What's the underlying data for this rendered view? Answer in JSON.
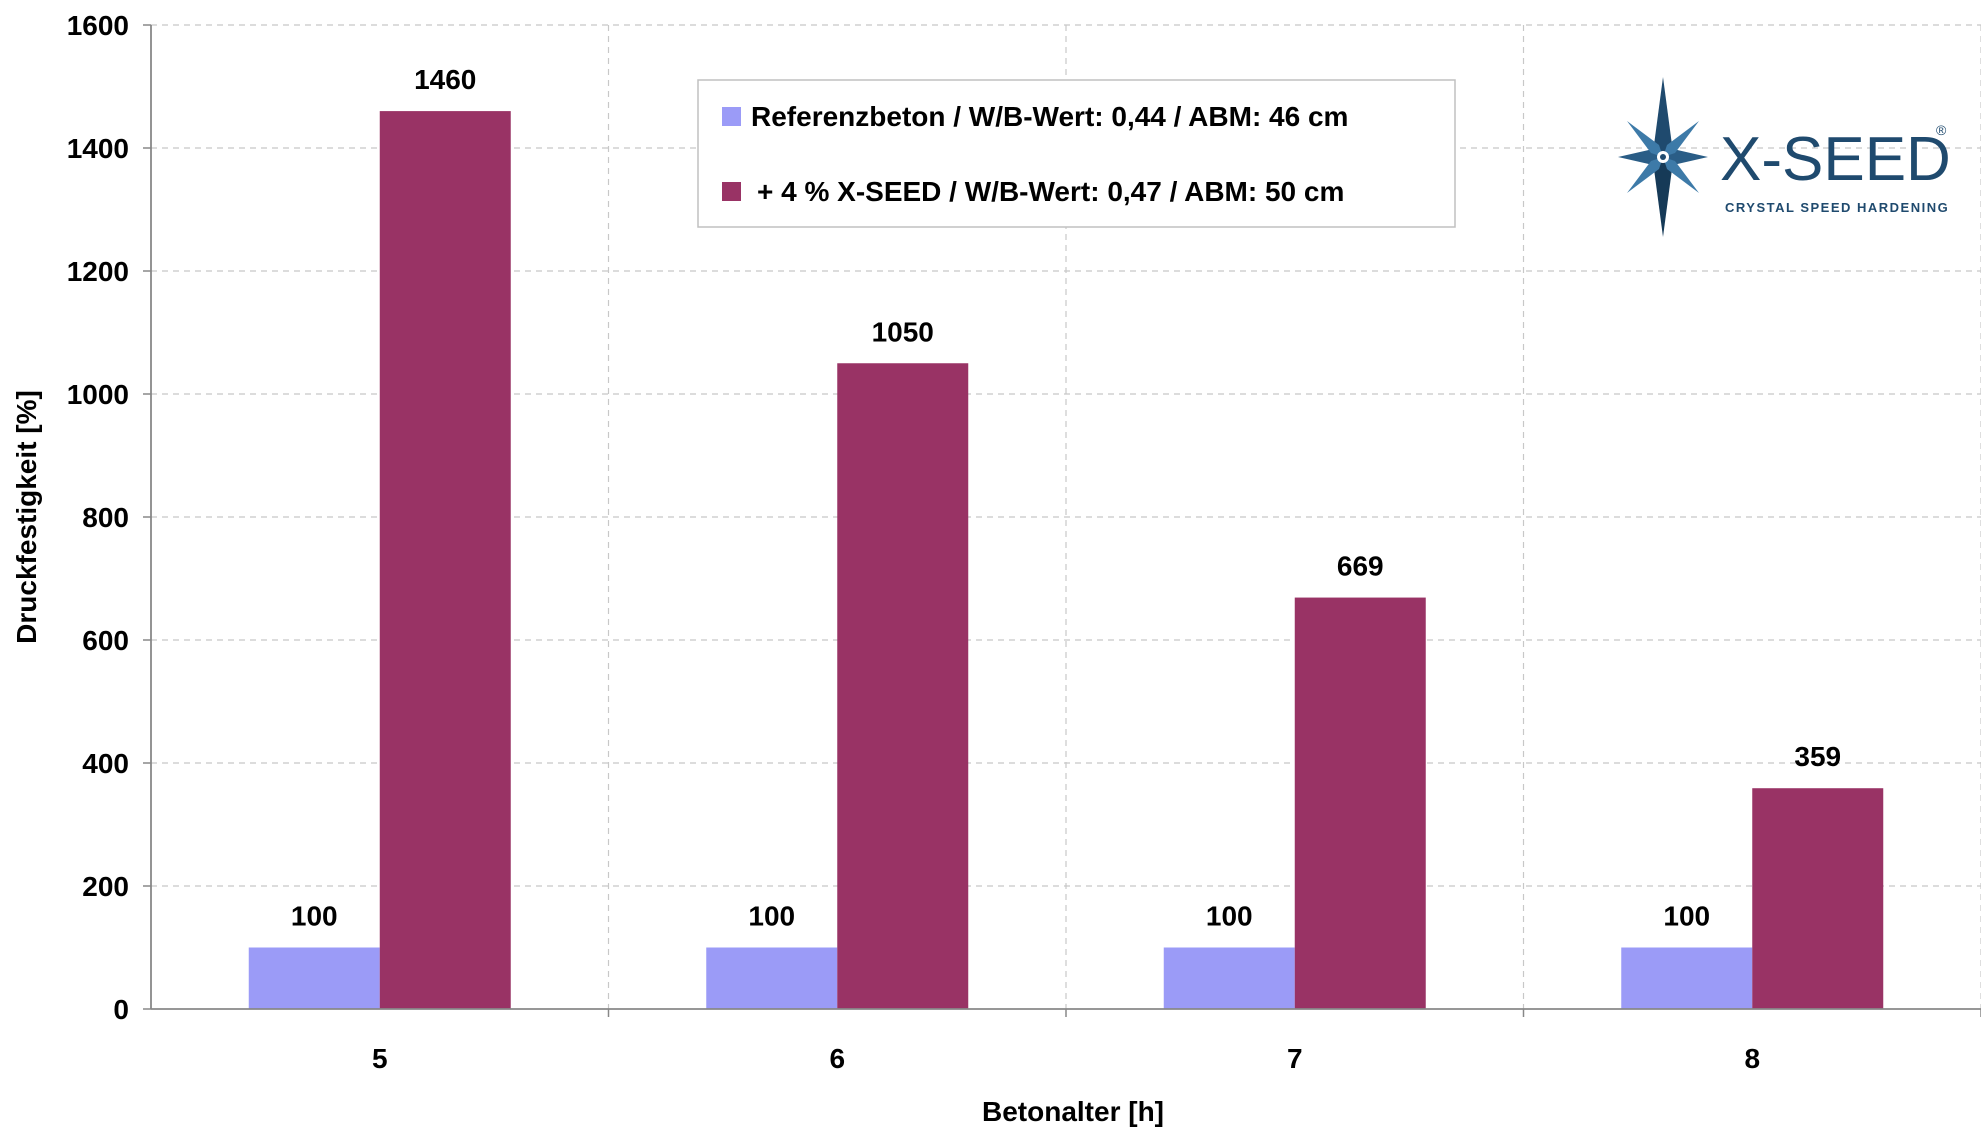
{
  "chart_data": {
    "type": "bar",
    "categories": [
      "5",
      "6",
      "7",
      "8"
    ],
    "series": [
      {
        "name": "Referenzbeton / W/B-Wert: 0,44 / ABM: 46 cm",
        "values": [
          100,
          100,
          100,
          100
        ],
        "color": "#9b9bf7"
      },
      {
        "name": "+ 4 % X-SEED / W/B-Wert: 0,47 / ABM: 50 cm",
        "values": [
          1460,
          1050,
          669,
          359
        ],
        "color": "#993365"
      }
    ],
    "xlabel": "Betonalter [h]",
    "ylabel": "Druckfestigkeit [%]",
    "ylim": [
      0,
      1600
    ],
    "yticks": [
      0,
      200,
      400,
      600,
      800,
      1000,
      1200,
      1400,
      1600
    ],
    "grid": true,
    "legend_position": "top-center"
  },
  "logo": {
    "name": "X-SEED",
    "registered": "®",
    "tagline": "CRYSTAL SPEED HARDENING",
    "icon": "star-crystal-icon",
    "color": "#1f4a6e"
  }
}
